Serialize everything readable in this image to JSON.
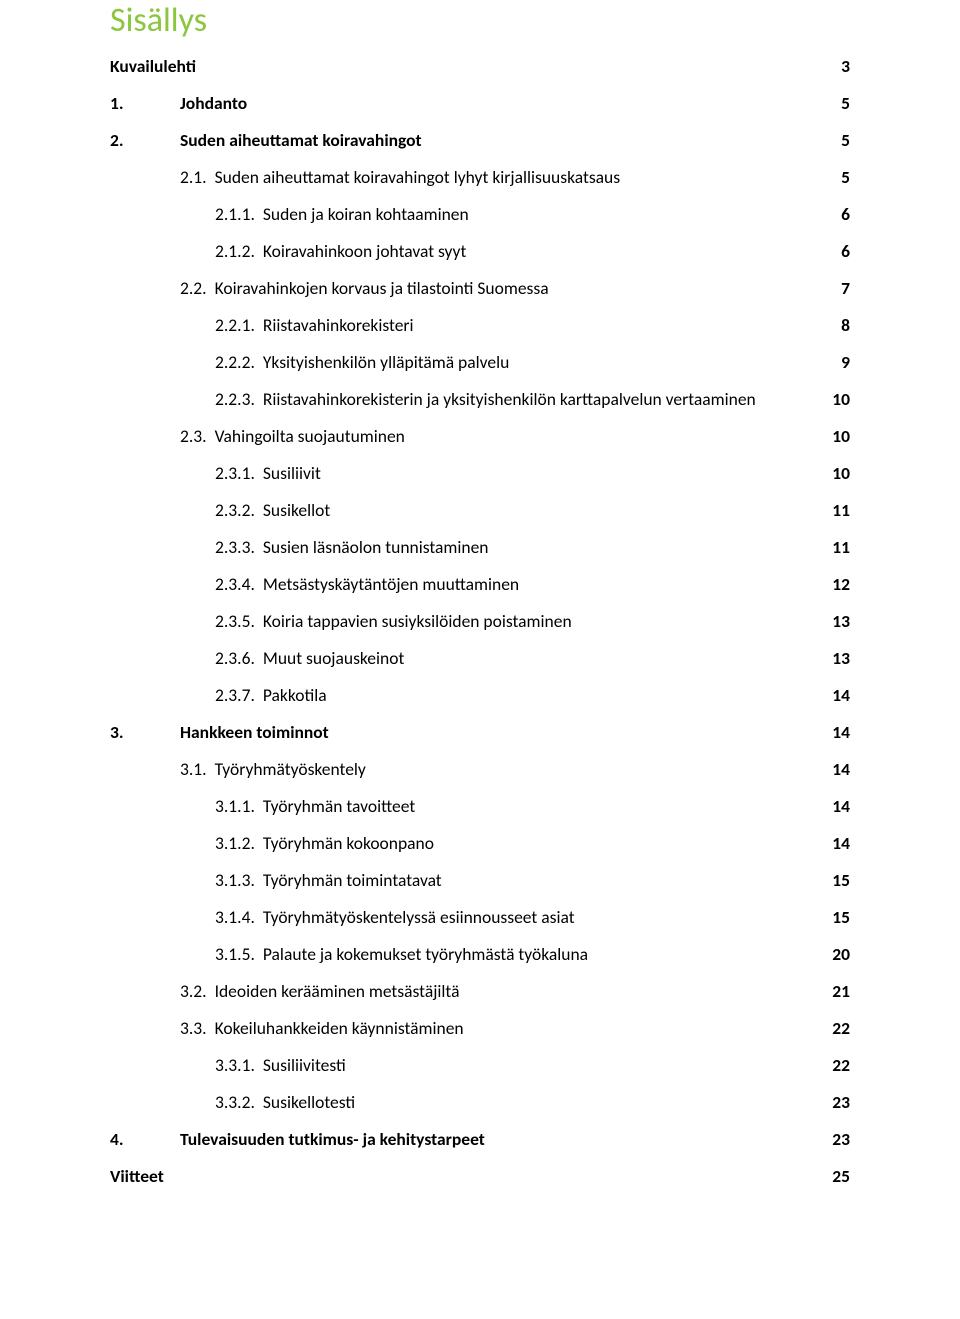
{
  "title": "Sisällys",
  "title_color": "#8cc63f",
  "text_color": "#000000",
  "background_color": "#ffffff",
  "font_family": "Calibri, Arial, sans-serif",
  "title_fontsize": 34,
  "body_fontsize": 17.5,
  "entries": [
    {
      "indent": 0,
      "bold": true,
      "num": "",
      "label": "Kuvailulehti",
      "page": "3"
    },
    {
      "indent": 1,
      "bold": true,
      "num": "1.",
      "label": "Johdanto",
      "page": "5"
    },
    {
      "indent": 1,
      "bold": true,
      "num": "2.",
      "label": "Suden aiheuttamat koiravahingot",
      "page": "5"
    },
    {
      "indent": 2,
      "bold": false,
      "num": "2.1.",
      "label": "Suden aiheuttamat koiravahingot lyhyt kirjallisuuskatsaus",
      "page": "5"
    },
    {
      "indent": 3,
      "bold": false,
      "num": "2.1.1.",
      "label": "Suden ja koiran kohtaaminen",
      "page": "6"
    },
    {
      "indent": 3,
      "bold": false,
      "num": "2.1.2.",
      "label": "Koiravahinkoon johtavat syyt",
      "page": "6"
    },
    {
      "indent": 2,
      "bold": false,
      "num": "2.2.",
      "label": "Koiravahinkojen korvaus ja tilastointi Suomessa",
      "page": "7"
    },
    {
      "indent": 3,
      "bold": false,
      "num": "2.2.1.",
      "label": "Riistavahinkorekisteri",
      "page": "8"
    },
    {
      "indent": 3,
      "bold": false,
      "num": "2.2.2.",
      "label": "Yksityishenkilön ylläpitämä palvelu",
      "page": "9"
    },
    {
      "indent": 3,
      "bold": false,
      "num": "2.2.3.",
      "label": "Riistavahinkorekisterin ja yksityishenkilön karttapalvelun vertaaminen",
      "page": "10"
    },
    {
      "indent": 2,
      "bold": false,
      "num": "2.3.",
      "label": "Vahingoilta suojautuminen",
      "page": "10"
    },
    {
      "indent": 3,
      "bold": false,
      "num": "2.3.1.",
      "label": "Susiliivit",
      "page": "10"
    },
    {
      "indent": 3,
      "bold": false,
      "num": "2.3.2.",
      "label": "Susikellot",
      "page": "11"
    },
    {
      "indent": 3,
      "bold": false,
      "num": "2.3.3.",
      "label": "Susien läsnäolon tunnistaminen",
      "page": "11"
    },
    {
      "indent": 3,
      "bold": false,
      "num": "2.3.4.",
      "label": "Metsästyskäytäntöjen muuttaminen",
      "page": "12"
    },
    {
      "indent": 3,
      "bold": false,
      "num": "2.3.5.",
      "label": "Koiria tappavien susiyksilöiden poistaminen",
      "page": "13"
    },
    {
      "indent": 3,
      "bold": false,
      "num": "2.3.6.",
      "label": "Muut suojauskeinot",
      "page": "13"
    },
    {
      "indent": 3,
      "bold": false,
      "num": "2.3.7.",
      "label": "Pakkotila",
      "page": "14"
    },
    {
      "indent": 1,
      "bold": true,
      "num": "3.",
      "label": "Hankkeen toiminnot",
      "page": "14"
    },
    {
      "indent": 2,
      "bold": false,
      "num": "3.1.",
      "label": "Työryhmätyöskentely",
      "page": "14"
    },
    {
      "indent": 3,
      "bold": false,
      "num": "3.1.1.",
      "label": "Työryhmän tavoitteet",
      "page": "14"
    },
    {
      "indent": 3,
      "bold": false,
      "num": "3.1.2.",
      "label": "Työryhmän kokoonpano",
      "page": "14"
    },
    {
      "indent": 3,
      "bold": false,
      "num": "3.1.3.",
      "label": "Työryhmän toimintatavat",
      "page": "15"
    },
    {
      "indent": 3,
      "bold": false,
      "num": "3.1.4.",
      "label": "Työryhmätyöskentelyssä esiinnousseet asiat",
      "page": "15"
    },
    {
      "indent": 3,
      "bold": false,
      "num": "3.1.5.",
      "label": "Palaute ja kokemukset työryhmästä työkaluna",
      "page": "20"
    },
    {
      "indent": 2,
      "bold": false,
      "num": "3.2.",
      "label": "Ideoiden kerääminen metsästäjiltä",
      "page": "21"
    },
    {
      "indent": 2,
      "bold": false,
      "num": "3.3.",
      "label": "Kokeiluhankkeiden käynnistäminen",
      "page": "22"
    },
    {
      "indent": 3,
      "bold": false,
      "num": "3.3.1.",
      "label": "Susiliivitesti",
      "page": "22"
    },
    {
      "indent": 3,
      "bold": false,
      "num": "3.3.2.",
      "label": "Susikellotesti",
      "page": "23"
    },
    {
      "indent": 1,
      "bold": true,
      "num": "4.",
      "label": "Tulevaisuuden tutkimus- ja kehitystarpeet",
      "page": "23"
    },
    {
      "indent": 0,
      "bold": true,
      "num": "",
      "label": "Viitteet",
      "page": "25"
    }
  ]
}
